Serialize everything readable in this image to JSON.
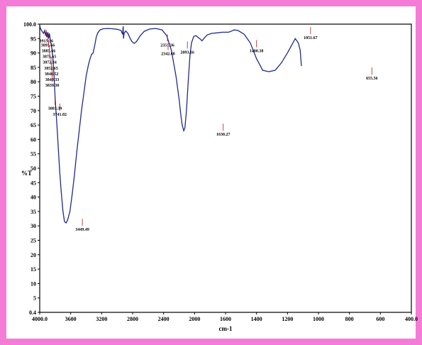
{
  "chart_data": {
    "type": "line",
    "title": "",
    "xlabel": "cm-1",
    "ylabel": "%T",
    "xlim": [
      4000.0,
      400.0
    ],
    "ylim": [
      0.4,
      100.0
    ],
    "x_ticks": [
      "4000.0",
      "3600",
      "3200",
      "2800",
      "2400",
      "2000",
      "1600",
      "1400",
      "1200",
      "1000",
      "800",
      "600",
      "400.0"
    ],
    "y_ticks": [
      "100.0",
      "95",
      "90",
      "85",
      "80",
      "75",
      "70",
      "65",
      "60",
      "55",
      "50",
      "45",
      "40",
      "35",
      "30",
      "25",
      "20",
      "15",
      "10",
      "5",
      "0.4"
    ],
    "series": [
      {
        "color": "#1f2a8a",
        "points": [
          [
            4000,
            99.5
          ],
          [
            3990,
            98.5
          ],
          [
            3970,
            97.5
          ],
          [
            3950,
            96.8
          ],
          [
            3935,
            97.8
          ],
          [
            3925,
            96.0
          ],
          [
            3915,
            97.4
          ],
          [
            3905,
            95.5
          ],
          [
            3895,
            97.2
          ],
          [
            3885,
            95.0
          ],
          [
            3875,
            96.8
          ],
          [
            3860,
            94.0
          ],
          [
            3845,
            92.0
          ],
          [
            3830,
            88.0
          ],
          [
            3815,
            82.0
          ],
          [
            3800,
            74.0
          ],
          [
            3780,
            66.0
          ],
          [
            3760,
            57.0
          ],
          [
            3740,
            48.0
          ],
          [
            3720,
            41.0
          ],
          [
            3700,
            35.0
          ],
          [
            3680,
            31.5
          ],
          [
            3660,
            31.0
          ],
          [
            3640,
            32.0
          ],
          [
            3610,
            35.0
          ],
          [
            3580,
            41.0
          ],
          [
            3550,
            48.0
          ],
          [
            3520,
            56.0
          ],
          [
            3490,
            63.0
          ],
          [
            3460,
            70.0
          ],
          [
            3430,
            76.0
          ],
          [
            3400,
            82.0
          ],
          [
            3370,
            86.0
          ],
          [
            3350,
            88.0
          ],
          [
            3330,
            89.5
          ],
          [
            3310,
            90.0
          ],
          [
            3290,
            92.5
          ],
          [
            3270,
            95.5
          ],
          [
            3250,
            97.0
          ],
          [
            3220,
            98.0
          ],
          [
            3180,
            98.4
          ],
          [
            3120,
            98.5
          ],
          [
            3060,
            98.4
          ],
          [
            3000,
            98.2
          ],
          [
            2950,
            97.8
          ],
          [
            2930,
            96.5
          ],
          [
            2922,
            99.2
          ],
          [
            2918,
            95.0
          ],
          [
            2910,
            96.8
          ],
          [
            2890,
            97.6
          ],
          [
            2860,
            96.8
          ],
          [
            2835,
            95.2
          ],
          [
            2810,
            94.0
          ],
          [
            2780,
            93.3
          ],
          [
            2750,
            94.0
          ],
          [
            2700,
            96.0
          ],
          [
            2650,
            97.5
          ],
          [
            2580,
            98.3
          ],
          [
            2500,
            98.5
          ],
          [
            2420,
            98.0
          ],
          [
            2360,
            96.0
          ],
          [
            2300,
            91.0
          ],
          [
            2240,
            82.0
          ],
          [
            2200,
            74.0
          ],
          [
            2175,
            68.0
          ],
          [
            2160,
            65.0
          ],
          [
            2140,
            63.0
          ],
          [
            2125,
            64.0
          ],
          [
            2105,
            70.0
          ],
          [
            2080,
            81.0
          ],
          [
            2060,
            89.0
          ],
          [
            2040,
            93.5
          ],
          [
            2010,
            95.8
          ],
          [
            1980,
            96.0
          ],
          [
            1950,
            95.3
          ],
          [
            1925,
            94.8
          ],
          [
            1905,
            94.2
          ],
          [
            1880,
            95.0
          ],
          [
            1840,
            96.2
          ],
          [
            1780,
            96.8
          ],
          [
            1700,
            97.0
          ],
          [
            1640,
            97.2
          ],
          [
            1600,
            97.2
          ],
          [
            1580,
            97.2
          ],
          [
            1560,
            97.6
          ],
          [
            1545,
            98.0
          ],
          [
            1520,
            97.8
          ],
          [
            1480,
            96.5
          ],
          [
            1440,
            93.5
          ],
          [
            1400,
            88.0
          ],
          [
            1360,
            84.0
          ],
          [
            1320,
            83.5
          ],
          [
            1280,
            84.0
          ],
          [
            1240,
            86.5
          ],
          [
            1200,
            90.0
          ],
          [
            1170,
            93.0
          ],
          [
            1150,
            95.0
          ],
          [
            1130,
            93.5
          ],
          [
            1118,
            91.0
          ],
          [
            1110,
            85.5
          ]
        ]
      }
    ],
    "peak_labels": [
      {
        "label": "3915.36",
        "x": 3915,
        "y": 95.5
      },
      {
        "label": "3895.66",
        "x": 3895,
        "y": 94.0
      },
      {
        "label": "3885.66",
        "x": 3885,
        "y": 92.0
      },
      {
        "label": "3875.65",
        "x": 3875,
        "y": 90.0
      },
      {
        "label": "3872.34",
        "x": 3872,
        "y": 88.0
      },
      {
        "label": "3853.65",
        "x": 3853,
        "y": 86.0
      },
      {
        "label": "3848.52",
        "x": 3848,
        "y": 84.0
      },
      {
        "label": "3840.33",
        "x": 3840,
        "y": 82.0
      },
      {
        "label": "3839.30",
        "x": 3838,
        "y": 80.0
      },
      {
        "label": "3803.39",
        "x": 3803,
        "y": 72.0
      },
      {
        "label": "3741.02",
        "x": 3741,
        "y": 70.0
      },
      {
        "label": "3449.49",
        "x": 3449,
        "y": 30.0
      },
      {
        "label": "2351.36",
        "x": 2351,
        "y": 94.0
      },
      {
        "label": "2342.68",
        "x": 2342,
        "y": 91.0
      },
      {
        "label": "2093.16",
        "x": 2093,
        "y": 91.5
      },
      {
        "label": "1630.27",
        "x": 1630,
        "y": 63.0
      },
      {
        "label": "1400.38",
        "x": 1400,
        "y": 92.0
      },
      {
        "label": "1051.67",
        "x": 1051,
        "y": 96.5
      },
      {
        "label": "655.56",
        "x": 655,
        "y": 82.5
      }
    ]
  }
}
